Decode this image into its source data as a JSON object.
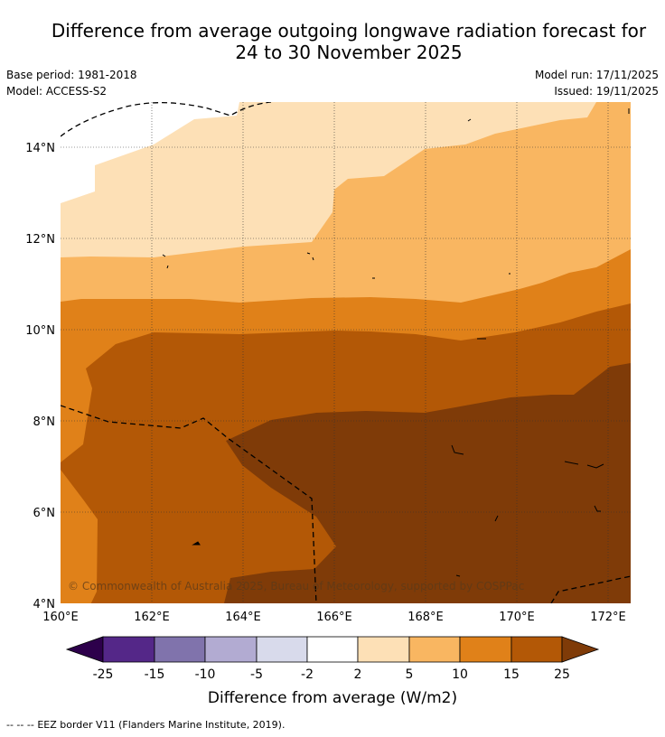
{
  "title": {
    "line1": "Difference from average outgoing longwave radiation forecast for",
    "line2": "24 to 30 November 2025"
  },
  "meta": {
    "base_period": "Base period: 1981-2018",
    "model": "Model: ACCESS-S2",
    "model_run": "Model run: 17/11/2025",
    "issued": "Issued: 19/11/2025"
  },
  "map": {
    "lon_ticks": [
      "160°E",
      "162°E",
      "164°E",
      "166°E",
      "168°E",
      "170°E",
      "172°E"
    ],
    "lat_ticks": [
      "14°N",
      "12°N",
      "10°N",
      "8°N",
      "6°N",
      "4°N"
    ],
    "copyright": "© Commonwealth of Australia 2025, Bureau of Meteorology, supported by COSPPac",
    "band_colors": {
      "band_2_5": "#fde0b6",
      "band_5_10": "#f9b661",
      "band_10_15": "#e08119",
      "band_15_20": "#b35806",
      "band_20_25": "#7f3b08"
    }
  },
  "colorbar": {
    "title": "Difference from average (W/m2)",
    "tick_labels": [
      "-25",
      "-15",
      "-10",
      "-5",
      "-2",
      "2",
      "5",
      "10",
      "15",
      "25"
    ],
    "colors": [
      "#542788",
      "#8073ac",
      "#b2abd2",
      "#d8daeb",
      "#ffffff",
      "#fde0b6",
      "#f9b661",
      "#e08119",
      "#b35806"
    ],
    "under_color": "#2d004b",
    "over_color": "#7f3b08"
  },
  "footer": {
    "legend_symbol": "-- -- --",
    "eez_text": "EEZ border V11 (Flanders Marine Institute, 2019)."
  }
}
